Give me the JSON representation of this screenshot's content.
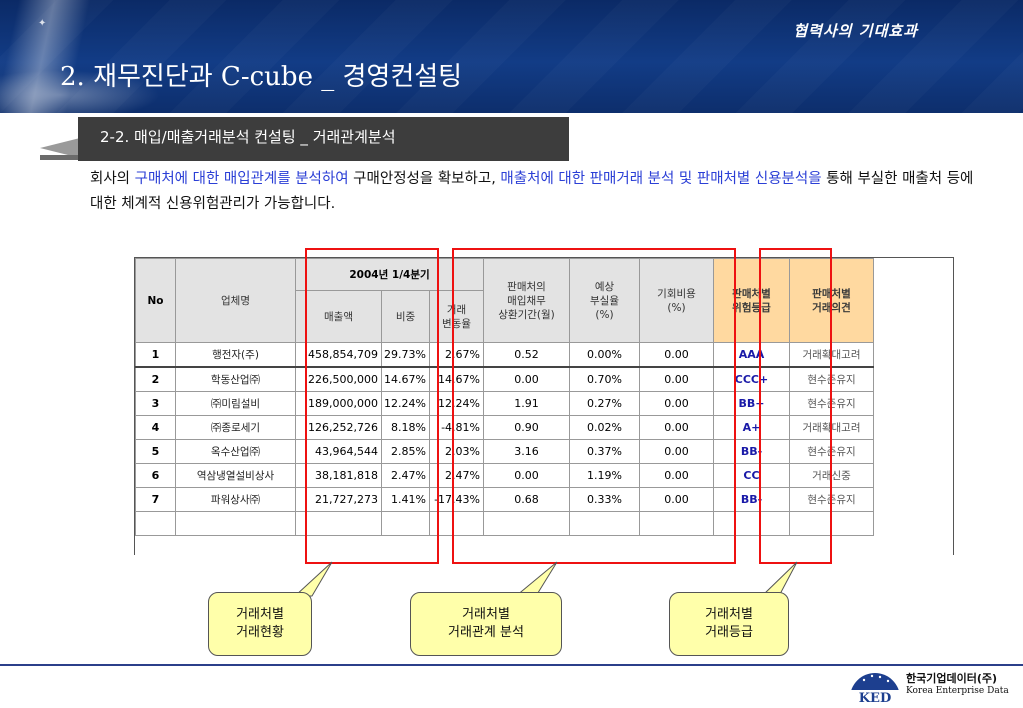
{
  "header": {
    "subtitle": "협력사의 기대효과",
    "title": "2. 재무진단과 C-cube _ 경영컨설팅"
  },
  "section": {
    "label": "2-2. 매입/매출거래분석 컨설팅 _ 거래관계분석"
  },
  "intro": {
    "p1": "회사의 ",
    "h1": "구매처에 대한  매입관계를 분석하여",
    "p2": " 구매안정성을 확보하고, ",
    "h2": "매출처에 대한 판매거래 분석 및 판매처별 신용분석을",
    "p3": " 통해 부실한 매출처 등에 대한 체계적 신용위험관리가 가능합니다."
  },
  "table": {
    "headers": {
      "no": "No",
      "company": "업체명",
      "period": "2004년 1/4분기",
      "sales": "매출액",
      "ratio": "비중",
      "change_l1": "거래",
      "change_l2": "변동율",
      "debt_l1": "판매처의",
      "debt_l2": "매입채무",
      "debt_l3": "상환기간(월)",
      "loss_l1": "예상",
      "loss_l2": "부실율",
      "loss_l3": "(%)",
      "opp_l1": "기회비용",
      "opp_l2": "(%)",
      "grade_l1": "판매처별",
      "grade_l2": "위험등급",
      "opinion_l1": "판매처별",
      "opinion_l2": "거래의견"
    },
    "rows": [
      {
        "no": "1",
        "company": "행전자(주)",
        "sales": "458,854,709",
        "ratio": "29.73%",
        "change": "2.67%",
        "debt": "0.52",
        "loss": "0.00%",
        "opp": "0.00",
        "grade": "AAA",
        "opinion": "거래확대고려"
      },
      {
        "no": "2",
        "company": "학동산업㈜",
        "sales": "226,500,000",
        "ratio": "14.67%",
        "change": "14.67%",
        "debt": "0.00",
        "loss": "0.70%",
        "opp": "0.00",
        "grade": "CCC+",
        "opinion": "현수준유지"
      },
      {
        "no": "3",
        "company": "㈜미림설비",
        "sales": "189,000,000",
        "ratio": "12.24%",
        "change": "12.24%",
        "debt": "1.91",
        "loss": "0.27%",
        "opp": "0.00",
        "grade": "BB+",
        "opinion": "현수준유지"
      },
      {
        "no": "4",
        "company": "㈜종로세기",
        "sales": "126,252,726",
        "ratio": "8.18%",
        "change": "-4.81%",
        "debt": "0.90",
        "loss": "0.02%",
        "opp": "0.00",
        "grade": "A+",
        "opinion": "거래확대고려"
      },
      {
        "no": "5",
        "company": "옥수산업㈜",
        "sales": "43,964,544",
        "ratio": "2.85%",
        "change": "2.03%",
        "debt": "3.16",
        "loss": "0.37%",
        "opp": "0.00",
        "grade": "BB-",
        "opinion": "현수준유지"
      },
      {
        "no": "6",
        "company": "역삼냉열설비상사",
        "sales": "38,181,818",
        "ratio": "2.47%",
        "change": "2.47%",
        "debt": "0.00",
        "loss": "1.19%",
        "opp": "0.00",
        "grade": "CC",
        "opinion": "거래신중"
      },
      {
        "no": "7",
        "company": "파워상사㈜",
        "sales": "21,727,273",
        "ratio": "1.41%",
        "change": "-17.43%",
        "debt": "0.68",
        "loss": "0.33%",
        "opp": "0.00",
        "grade": "BB-",
        "opinion": "현수준유지"
      }
    ]
  },
  "callouts": [
    {
      "line1": "거래처별",
      "line2": "거래현황"
    },
    {
      "line1": "거래처별",
      "line2": "거래관계 분석"
    },
    {
      "line1": "거래처별",
      "line2": "거래등급"
    }
  ],
  "footer": {
    "logo_mark": "KED",
    "company_ko": "한국기업데이터(주)",
    "company_en": "Korea Enterprise Data"
  },
  "colors": {
    "banner": "#123c86",
    "highlight_text": "#2b3fd6",
    "red_box": "#e11111",
    "callout_bg": "#ffffaa",
    "grade_header_bg": "#ffd9a0"
  }
}
